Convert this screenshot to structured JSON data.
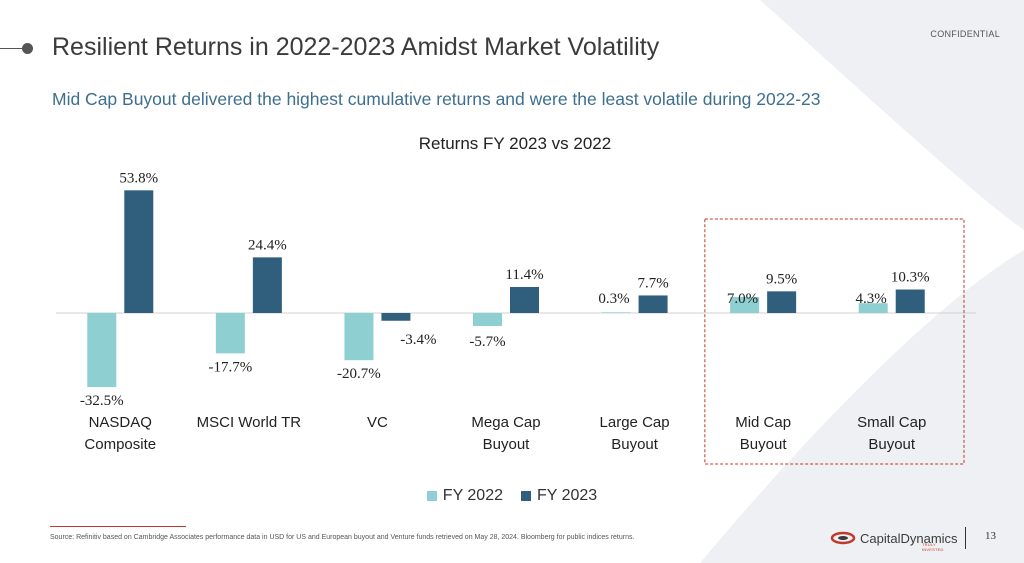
{
  "header": {
    "confidential": "CONFIDENTIAL",
    "title": "Resilient Returns in 2022-2023 Amidst Market Volatility",
    "subtitle": "Mid Cap Buyout delivered the highest cumulative returns and were the least volatile during 2022-23"
  },
  "chart_data": {
    "type": "bar",
    "title": "Returns FY 2023 vs 2022",
    "categories": [
      [
        "NASDAQ",
        "Composite"
      ],
      [
        "MSCI World TR"
      ],
      [
        "VC"
      ],
      [
        "Mega Cap",
        "Buyout"
      ],
      [
        "Large Cap",
        "Buyout"
      ],
      [
        "Mid Cap",
        "Buyout"
      ],
      [
        "Small Cap",
        "Buyout"
      ]
    ],
    "series": [
      {
        "name": "FY 2022",
        "color": "#8ecfd2",
        "values": [
          -32.5,
          -17.7,
          -20.7,
          -5.7,
          0.3,
          7.0,
          4.3
        ],
        "labels": [
          "-32.5%",
          "-17.7%",
          "-20.7%",
          "-5.7%",
          "0.3%",
          "7.0%",
          "4.3%"
        ]
      },
      {
        "name": "FY 2023",
        "color": "#2f5f7d",
        "values": [
          53.8,
          24.4,
          -3.4,
          11.4,
          7.7,
          9.5,
          10.3
        ],
        "labels": [
          "53.8%",
          "24.4%",
          "-3.4%",
          "11.4%",
          "7.7%",
          "9.5%",
          "10.3%"
        ]
      }
    ],
    "highlighted_categories": [
      "Mid Cap Buyout",
      "Small Cap Buyout"
    ],
    "highlight_color": "#c0392b",
    "grid": false,
    "legend": "bottom"
  },
  "footer": {
    "source": "Source: Refinitiv based on Cambridge Associates performance data in USD for US and European buyout and Venture funds retrieved on May 28, 2024. Bloomberg for public indices returns.",
    "logo_text": "CapitalDynamics",
    "logo_tagline": "TRULY INVESTED",
    "page_number": "13"
  }
}
